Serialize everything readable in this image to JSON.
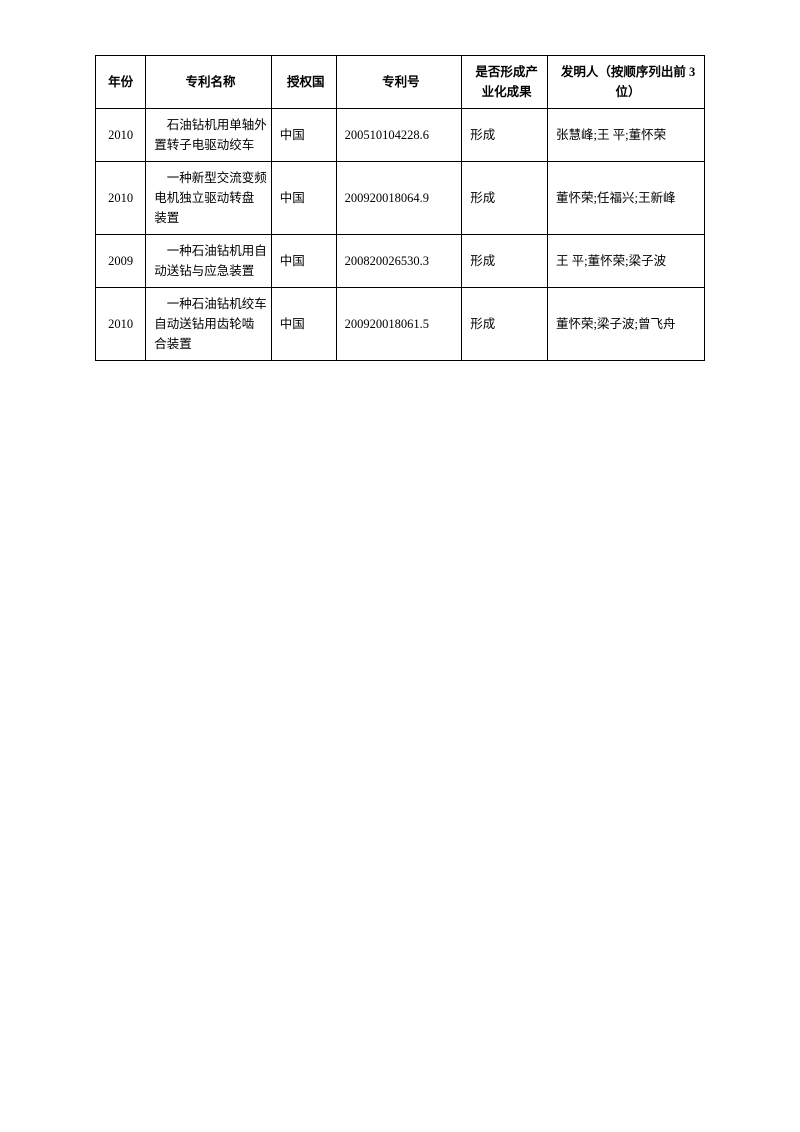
{
  "table": {
    "headers": {
      "year": "年份",
      "name": "专利名称",
      "country": "授权国",
      "number": "专利号",
      "result": "是否形成产业化成果",
      "inventor": "发明人（按顺序列出前 3 位）"
    },
    "rows": [
      {
        "year": "2010",
        "name_line1": "石油钻机用单轴外",
        "name_line2": "置转子电驱动绞车",
        "country": "中国",
        "number": "200510104228.6",
        "result": "形成",
        "inventor": "张慧峰;王  平;董怀荣"
      },
      {
        "year": "2010",
        "name_line1": "一种新型交流变频",
        "name_line2": "电机独立驱动转盘",
        "name_line3": "装置",
        "country": "中国",
        "number": "200920018064.9",
        "result": "形成",
        "inventor": "董怀荣;任福兴;王新峰"
      },
      {
        "year": "2009",
        "name_line1": "一种石油钻机用自",
        "name_line2": "动送钻与应急装置",
        "country": "中国",
        "number": "200820026530.3",
        "result": "形成",
        "inventor": "王  平;董怀荣;梁子波"
      },
      {
        "year": "2010",
        "name_line1": "一种石油钻机绞车",
        "name_line2": "自动送钻用齿轮啮",
        "name_line3": "合装置",
        "country": "中国",
        "number": "200920018061.5",
        "result": "形成",
        "inventor": "董怀荣;梁子波;曾飞舟"
      }
    ]
  }
}
